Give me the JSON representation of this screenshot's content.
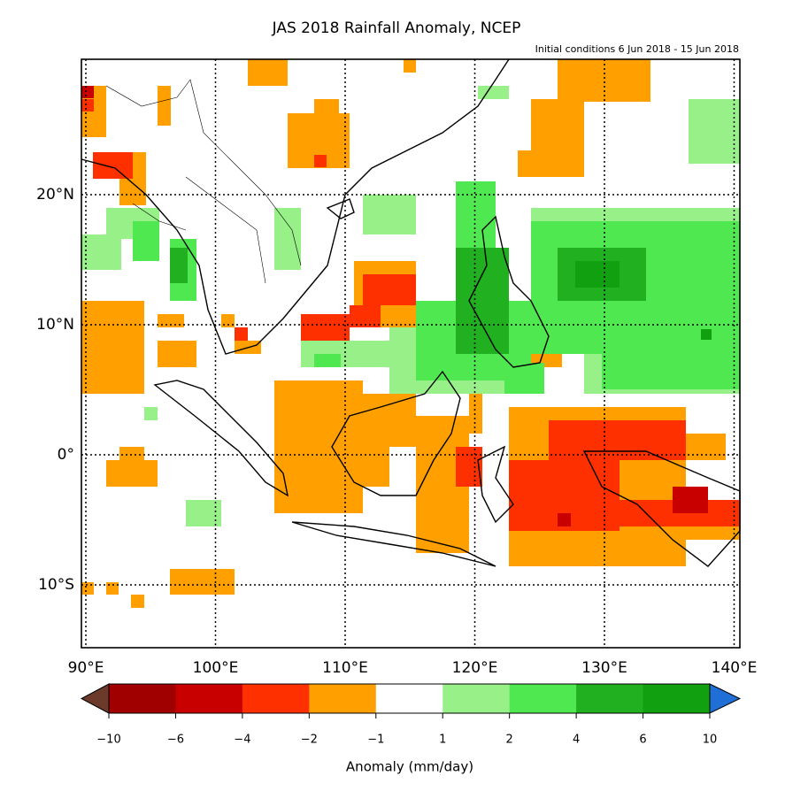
{
  "header": {
    "title": "JAS 2018 Rainfall Anomaly, NCEP",
    "subtitle": "Initial conditions 6 Jun 2018 - 15 Jun 2018"
  },
  "map": {
    "lat_labels": [
      "20°N",
      "10°N",
      "0°",
      "10°S"
    ],
    "lon_labels": [
      "90°E",
      "100°E",
      "110°E",
      "120°E",
      "130°E",
      "140°E"
    ]
  },
  "colorbar": {
    "under_color": "#6b3a2a",
    "over_color": "#1f6fd6",
    "colors": [
      "#a00000",
      "#c80000",
      "#ff3000",
      "#ffa000",
      "#ffffff",
      "#98f088",
      "#50e850",
      "#20b020",
      "#10a010"
    ],
    "ticks": [
      "−10",
      "−6",
      "−4",
      "−2",
      "−1",
      "1",
      "2",
      "4",
      "6",
      "10"
    ],
    "label": "Anomaly (mm/day)"
  }
}
